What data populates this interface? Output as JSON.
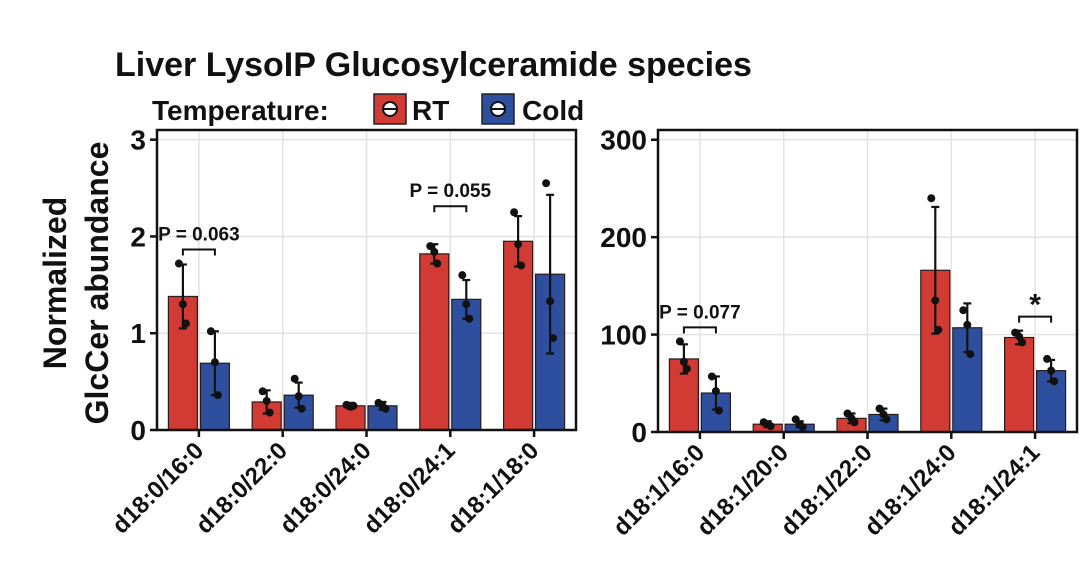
{
  "title": "Liver LysoIP Glucosylceramide species",
  "legend": {
    "title": "Temperature:",
    "items": [
      {
        "label": "RT",
        "color": "#d23b33"
      },
      {
        "label": "Cold",
        "color": "#2e4f9e"
      }
    ]
  },
  "ylabel": [
    "Normalized",
    "GlcCer abundance"
  ],
  "chart_data": [
    {
      "type": "bar",
      "categories": [
        "d18:0/16:0",
        "d18:0/22:0",
        "d18:0/24:0",
        "d18:0/24:1",
        "d18:1/18:0"
      ],
      "ylim": [
        0,
        3.1
      ],
      "yticks": [
        0,
        1,
        2,
        3
      ],
      "ytick_labels": [
        "0",
        "1",
        "2",
        "3"
      ],
      "grid": true,
      "series": [
        {
          "name": "RT",
          "values": [
            1.38,
            0.29,
            0.25,
            1.82,
            1.95
          ],
          "errors": [
            0.33,
            0.12,
            0.03,
            0.1,
            0.26
          ],
          "points": [
            [
              1.72,
              1.1,
              1.3
            ],
            [
              0.4,
              0.18,
              0.3
            ],
            [
              0.26,
              0.25,
              0.24
            ],
            [
              1.9,
              1.72,
              1.84
            ],
            [
              2.25,
              1.7,
              1.92
            ]
          ]
        },
        {
          "name": "Cold",
          "values": [
            0.69,
            0.36,
            0.25,
            1.35,
            1.61
          ],
          "errors": [
            0.33,
            0.13,
            0.04,
            0.2,
            0.82
          ],
          "points": [
            [
              1.02,
              0.36,
              0.7
            ],
            [
              0.53,
              0.22,
              0.35
            ],
            [
              0.28,
              0.22,
              0.25
            ],
            [
              1.6,
              1.15,
              1.3
            ],
            [
              2.55,
              0.95,
              1.33
            ]
          ]
        }
      ],
      "annotations": [
        {
          "text": "P = 0.063",
          "category_index": 0
        },
        {
          "text": "P = 0.055",
          "category_index": 3
        }
      ]
    },
    {
      "type": "bar",
      "categories": [
        "d18:1/16:0",
        "d18:1/20:0",
        "d18:1/22:0",
        "d18:1/24:0",
        "d18:1/24:1"
      ],
      "ylim": [
        0,
        310
      ],
      "yticks": [
        0,
        100,
        200,
        300
      ],
      "ytick_labels": [
        "0",
        "100",
        "200",
        "300"
      ],
      "grid": true,
      "series": [
        {
          "name": "RT",
          "values": [
            75,
            8,
            14,
            166,
            97
          ],
          "errors": [
            15,
            3,
            5,
            65,
            7
          ],
          "points": [
            [
              93,
              65,
              72
            ],
            [
              10,
              6,
              8
            ],
            [
              19,
              10,
              14
            ],
            [
              240,
              105,
              135
            ],
            [
              102,
              92,
              98
            ]
          ]
        },
        {
          "name": "Cold",
          "values": [
            40,
            8,
            18,
            107,
            63
          ],
          "errors": [
            17,
            3,
            6,
            25,
            11
          ],
          "points": [
            [
              57,
              22,
              42
            ],
            [
              13,
              5,
              8
            ],
            [
              24,
              13,
              18
            ],
            [
              125,
              80,
              110
            ],
            [
              75,
              52,
              63
            ]
          ]
        }
      ],
      "annotations": [
        {
          "text": "P = 0.077",
          "category_index": 0
        },
        {
          "text": "*",
          "category_index": 4
        }
      ]
    }
  ]
}
